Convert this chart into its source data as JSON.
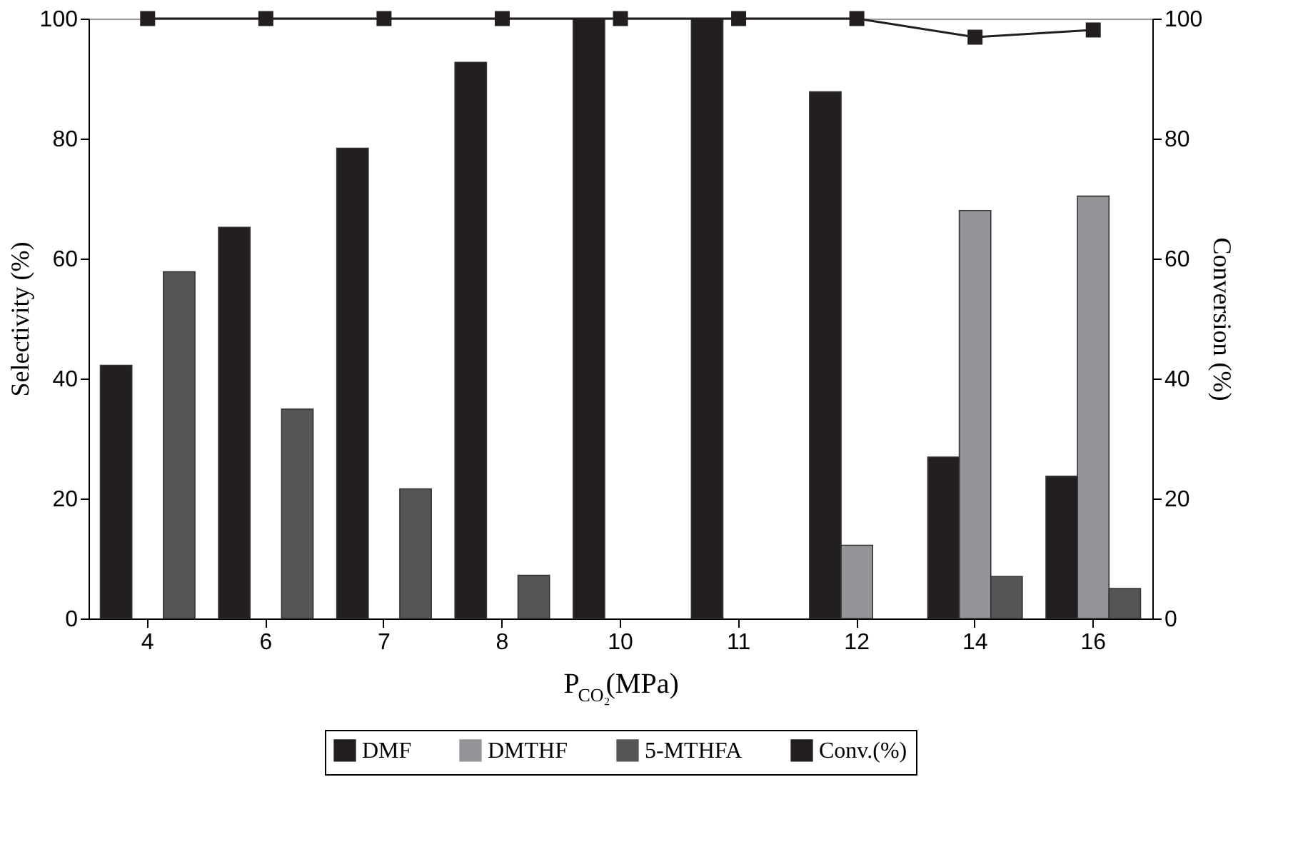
{
  "chart_data": {
    "type": "bar",
    "xlabel": "P$_{CO₂}$(MPa)",
    "ylabel": "Selectivity (%)",
    "y2label": "Conversion (%)",
    "categories": [
      "4",
      "6",
      "7",
      "8",
      "10",
      "11",
      "12",
      "14",
      "16"
    ],
    "series": [
      {
        "name": "DMF",
        "color": "#231f20",
        "values": [
          42.2,
          65.2,
          78.4,
          92.7,
          100,
          100,
          87.8,
          26.9,
          23.7
        ]
      },
      {
        "name": "DMTHF",
        "color": "#939598",
        "values": [
          null,
          null,
          null,
          null,
          null,
          null,
          12.2,
          68,
          70.4
        ]
      },
      {
        "name": "5-MTHFA",
        "color": "#555555",
        "values": [
          57.8,
          34.9,
          21.6,
          7.2,
          null,
          null,
          null,
          7,
          5
        ]
      },
      {
        "name": "Conv.(%)",
        "color": "#231f20",
        "type": "line",
        "axis": "y2",
        "marker": "square",
        "values": [
          100,
          100,
          100,
          100,
          100,
          100,
          100,
          96.9,
          98.1
        ]
      }
    ],
    "ylim": [
      0,
      100
    ],
    "yticks": [
      0,
      20,
      40,
      60,
      80,
      100
    ],
    "y2lim": [
      0,
      100
    ],
    "y2ticks": [
      0,
      20,
      40,
      60,
      80,
      100
    ],
    "grid": false,
    "legend": "bottom"
  }
}
